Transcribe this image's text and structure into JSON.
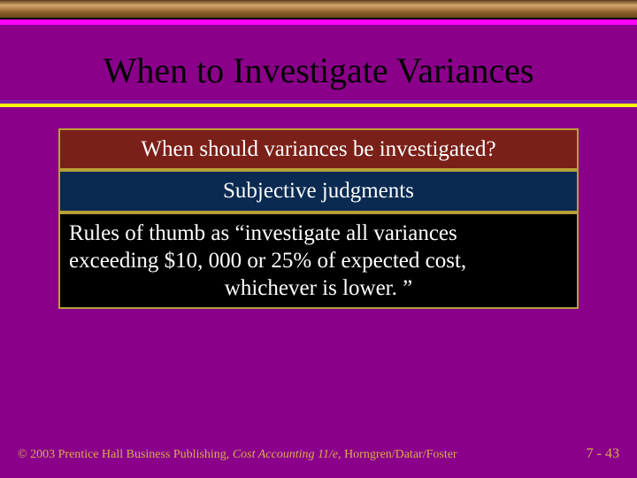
{
  "slide": {
    "title": "When to Investigate Variances",
    "background_color": "#8b008b",
    "top_strip_gradient": [
      "#5a3a1a",
      "#d4a86a",
      "#8b5a2b",
      "#6a4a1a"
    ],
    "magenta_strip_color": "#ff00ff",
    "divider_colors": {
      "top": "#7b1fa2",
      "bottom": "#ffff00"
    },
    "boxes": [
      {
        "text": "When should variances be investigated?",
        "bg_color": "#7a2018",
        "text_color": "#ffffff",
        "border_color": "#b8a038"
      },
      {
        "text": "Subjective judgments",
        "bg_color": "#0a2a52",
        "text_color": "#ffffff",
        "border_color": "#b8a038"
      },
      {
        "lines": [
          "Rules of thumb as “investigate all variances",
          "exceeding $10, 000 or 25% of expected cost,",
          "whichever is lower. ”"
        ],
        "bg_color": "#000000",
        "text_color": "#ffffff",
        "border_color": "#b8a038"
      }
    ],
    "footer": {
      "copyright_prefix": "© 2003 Prentice Hall Business Publishing, ",
      "book_title": "Cost Accounting 11/e,",
      "authors": " Horngren/Datar/Foster",
      "page": "7 - 43",
      "text_color": "#d6b04a"
    }
  }
}
